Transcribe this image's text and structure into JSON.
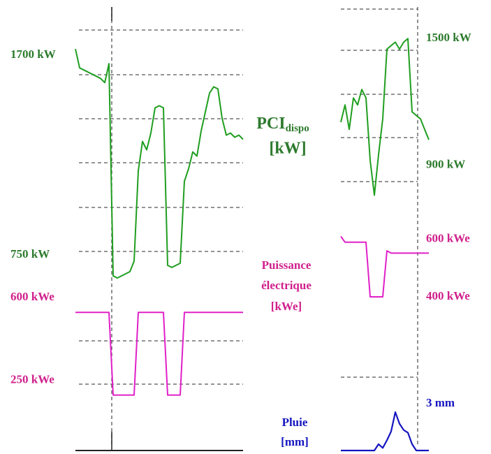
{
  "chart_data": [
    {
      "type": "line",
      "color": "#1f9e1f",
      "label_color": "#2d7a2d",
      "values": [
        1730,
        1640,
        1630,
        1620,
        1610,
        1600,
        1590,
        1570,
        1660,
        650,
        640,
        650,
        660,
        670,
        720,
        1150,
        1290,
        1250,
        1330,
        1450,
        1460,
        1450,
        700,
        690,
        700,
        710,
        1100,
        1160,
        1240,
        1220,
        1340,
        1430,
        1520,
        1550,
        1540,
        1400,
        1320,
        1330,
        1310,
        1320,
        1300
      ],
      "ylim": [
        600,
        1930
      ],
      "yticks": [
        {
          "value": 1700,
          "label": "1700 kW"
        },
        {
          "value": 750,
          "label": "750 kW"
        }
      ]
    },
    {
      "type": "line",
      "color": "#e020c8",
      "label_color": "#d0208c",
      "values": [
        600,
        600,
        600,
        600,
        600,
        600,
        600,
        600,
        600,
        250,
        250,
        250,
        250,
        250,
        250,
        600,
        600,
        600,
        600,
        600,
        600,
        600,
        250,
        250,
        250,
        250,
        600,
        600,
        600,
        600,
        600,
        600,
        600,
        600,
        600,
        600,
        600,
        600,
        600,
        600,
        600
      ],
      "ylim": [
        30,
        710
      ],
      "yticks": [
        {
          "value": 600,
          "label": "600 kWe"
        },
        {
          "value": 250,
          "label": "250 kWe"
        }
      ]
    },
    {
      "type": "line",
      "color": "#1f9e1f",
      "label_color": "#2d7a2d",
      "values": [
        1104,
        1186,
        1070,
        1219,
        1186,
        1259,
        1219,
        923,
        758,
        950,
        1120,
        1450,
        1467,
        1483,
        1450,
        1483,
        1500,
        1153,
        1136,
        1120,
        1070,
        1021
      ],
      "ylim": [
        690,
        1650
      ],
      "yticks": [
        {
          "value": 1500,
          "label": "1500 kW"
        },
        {
          "value": 900,
          "label": "900 kW"
        }
      ]
    },
    {
      "type": "line",
      "color": "#e020c8",
      "label_color": "#d0208c",
      "values": [
        610,
        590,
        590,
        590,
        590,
        590,
        590,
        400,
        400,
        400,
        400,
        560,
        552,
        552,
        552,
        552,
        552,
        552,
        552,
        552,
        552,
        552
      ],
      "ylim": [
        315,
        655
      ],
      "yticks": [
        {
          "value": 600,
          "label": "600 kWe"
        },
        {
          "value": 400,
          "label": "400 kWe"
        }
      ]
    },
    {
      "type": "line",
      "color": "#1515c0",
      "label_color": "#1515c0",
      "values": [
        0,
        0,
        0,
        0,
        0,
        0,
        0,
        0,
        0,
        0.5,
        0.2,
        0.8,
        1.5,
        3,
        2.1,
        1.6,
        1.4,
        0.5,
        0,
        0,
        0,
        0
      ],
      "ylim": [
        0,
        4.1
      ],
      "yticks": [
        {
          "value": 3,
          "label": "3 mm"
        }
      ]
    }
  ],
  "labels": {
    "pci": {
      "name": "PCI",
      "sub": "dispo",
      "unit": "[kW]"
    },
    "power": {
      "lines": [
        "Puissance",
        "électrique"
      ],
      "unit": "[kWe]"
    },
    "rain": {
      "name": "Pluie",
      "unit": "[mm]"
    }
  }
}
